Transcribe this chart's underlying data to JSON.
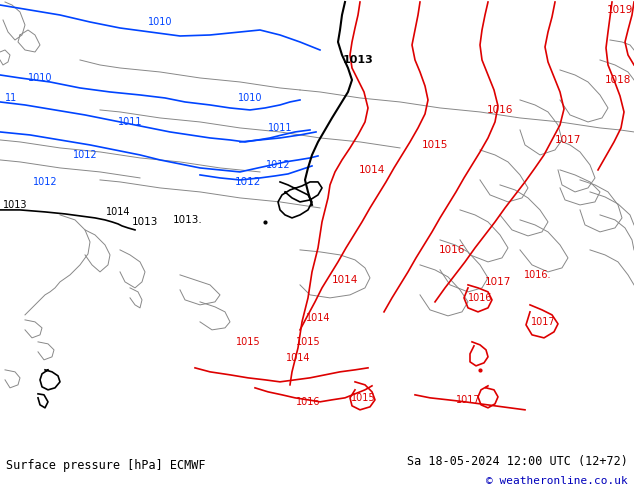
{
  "title_left": "Surface pressure [hPa] ECMWF",
  "title_right": "Sa 18-05-2024 12:00 UTC (12+72)",
  "copyright": "© weatheronline.co.uk",
  "bg_color": "#b8e68c",
  "fig_width": 6.34,
  "fig_height": 4.9,
  "dpi": 100,
  "bar_color": "#d0d0d0",
  "title_fontsize": 8.5,
  "copyright_fontsize": 8,
  "copyright_color": "#0000bb",
  "blue": "#0044ff",
  "black": "#000000",
  "red": "#dd0000",
  "gray": "#888888",
  "lw": 1.2,
  "coast_lw": 0.7
}
